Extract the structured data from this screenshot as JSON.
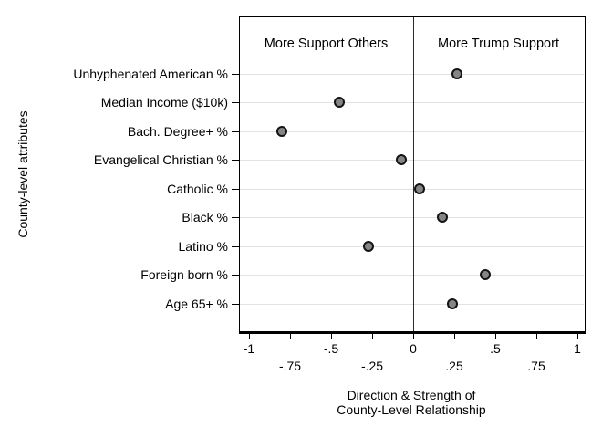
{
  "chart_data": {
    "type": "scatter",
    "subtype": "horizontal-dot-plot",
    "title": "",
    "ylabel": "County-level attributes",
    "xlabel_line1": "Direction & Strength of",
    "xlabel_line2": "County-Level Relationship",
    "annotations": {
      "left_half": "More Support Others",
      "right_half": "More Trump Support"
    },
    "categories": [
      "Unhyphenated American %",
      "Median Income ($10k)",
      "Bach. Degree+ %",
      "Evangelical Christian %",
      "Catholic %",
      "Black %",
      "Latino %",
      "Foreign born %",
      "Age 65+ %"
    ],
    "values": [
      0.27,
      -0.45,
      -0.8,
      -0.07,
      0.04,
      0.18,
      -0.27,
      0.44,
      0.24
    ],
    "xlim": [
      -1.06,
      1.05
    ],
    "xticks": [
      {
        "value": -1,
        "label": "-1",
        "row": 1
      },
      {
        "value": -0.75,
        "label": "-.75",
        "row": 2
      },
      {
        "value": -0.5,
        "label": "-.5",
        "row": 1
      },
      {
        "value": -0.25,
        "label": "-.25",
        "row": 2
      },
      {
        "value": 0,
        "label": "0",
        "row": 1
      },
      {
        "value": 0.25,
        "label": ".25",
        "row": 2
      },
      {
        "value": 0.5,
        "label": ".5",
        "row": 1
      },
      {
        "value": 0.75,
        "label": ".75",
        "row": 2
      },
      {
        "value": 1,
        "label": "1",
        "row": 1
      }
    ],
    "grid": "horizontal",
    "zero_reference_line": true,
    "legend": "none",
    "colors": {
      "marker_fill": "#858585",
      "marker_stroke": "#141414",
      "gridline": "#e2e2e2",
      "axis": "#000000",
      "background": "#ffffff"
    }
  }
}
